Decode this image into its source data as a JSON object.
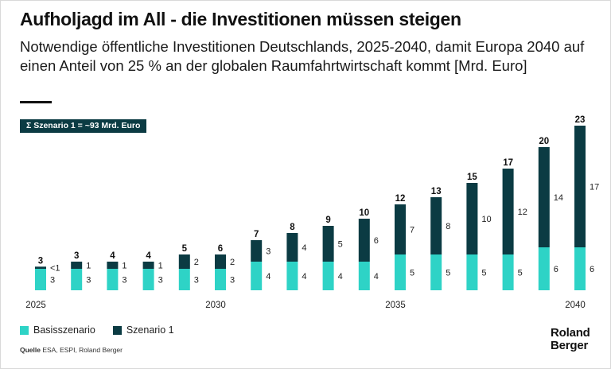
{
  "title": "Aufholjagd im All - die Investitionen müssen steigen",
  "subtitle": "Notwendige öffentliche Investitionen Deutschlands, 2025-2040, damit Europa 2040 auf einen Anteil von 25 % an der globalen Raumfahrtwirtschaft kommt [Mrd. Euro]",
  "badge": "Σ Szenario 1 = ~93 Mrd. Euro",
  "source": {
    "label": "Quelle",
    "text": " ESA, ESPI, Roland Berger"
  },
  "logo": {
    "line1": "Roland",
    "line2": "Berger"
  },
  "colors": {
    "base": "#2ed3c6",
    "scenario": "#0b3b43",
    "text": "#111111"
  },
  "chart_data": {
    "type": "bar",
    "stacked": true,
    "categories": [
      "2025",
      "2026",
      "2027",
      "2028",
      "2029",
      "2030",
      "2031",
      "2032",
      "2033",
      "2034",
      "2035",
      "2036",
      "2037",
      "2038",
      "2039",
      "2040"
    ],
    "x_tick_labels": [
      "2025",
      "",
      "",
      "",
      "",
      "2030",
      "",
      "",
      "",
      "",
      "2035",
      "",
      "",
      "",
      "",
      "2040"
    ],
    "series": [
      {
        "name": "Basisszenario",
        "values": [
          3,
          3,
          3,
          3,
          3,
          3,
          4,
          4,
          4,
          4,
          5,
          5,
          5,
          5,
          6,
          6
        ],
        "labels": [
          "3",
          "3",
          "3",
          "3",
          "3",
          "3",
          "4",
          "4",
          "4",
          "4",
          "5",
          "5",
          "5",
          "5",
          "6",
          "6"
        ]
      },
      {
        "name": "Szenario 1",
        "values": [
          0.3,
          1,
          1,
          1,
          2,
          2,
          3,
          4,
          5,
          6,
          7,
          8,
          10,
          12,
          14,
          17
        ],
        "labels": [
          "<1",
          "1",
          "1",
          "1",
          "2",
          "2",
          "3",
          "4",
          "5",
          "6",
          "7",
          "8",
          "10",
          "12",
          "14",
          "17"
        ]
      }
    ],
    "totals": [
      "3",
      "3",
      "4",
      "4",
      "5",
      "6",
      "7",
      "8",
      "9",
      "10",
      "12",
      "13",
      "15",
      "17",
      "20",
      "23"
    ],
    "ylim": [
      0,
      23
    ],
    "legend": {
      "position": "bottom-left",
      "entries": [
        "Basisszenario",
        "Szenario 1"
      ]
    }
  }
}
